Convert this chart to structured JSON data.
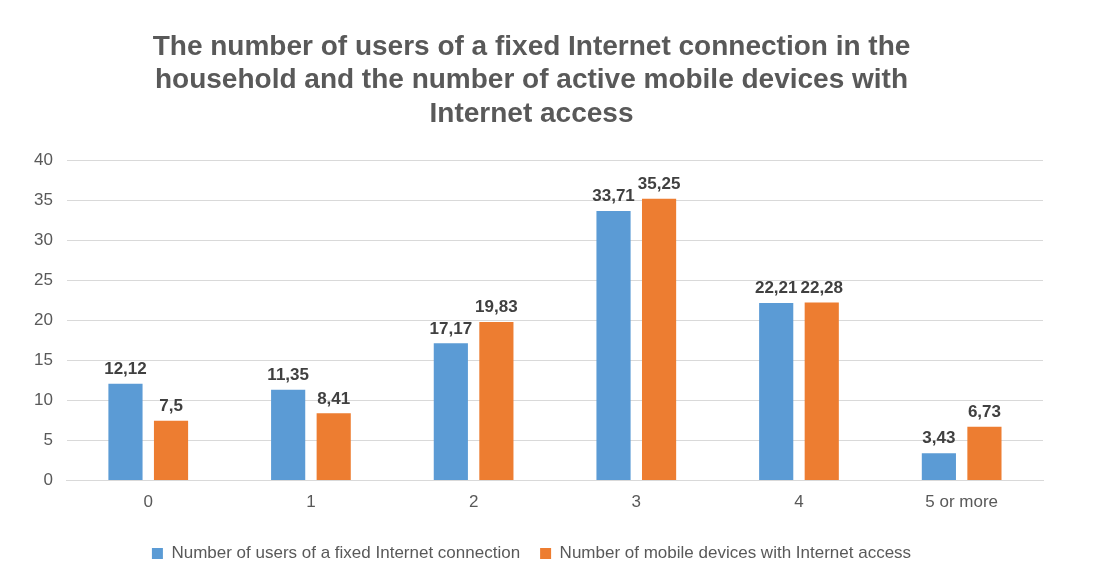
{
  "chart_data": {
    "type": "bar",
    "title": "The number of users of a fixed Internet connection in the household and the number of active mobile devices with Internet access",
    "categories": [
      "0",
      "1",
      "2",
      "3",
      "4",
      "5 or more"
    ],
    "series": [
      {
        "name": "Number of users of a fixed Internet connection",
        "color": "#5b9bd5",
        "values": [
          12.12,
          11.35,
          17.17,
          33.71,
          22.21,
          3.43
        ],
        "value_labels": [
          "12,12",
          "11,35",
          "17,17",
          "33,71",
          "22,21",
          "3,43"
        ]
      },
      {
        "name": "Number of mobile devices with Internet access",
        "color": "#ed7d31",
        "values": [
          7.5,
          8.41,
          19.83,
          35.25,
          22.28,
          6.73
        ],
        "value_labels": [
          "7,5",
          "8,41",
          "19,83",
          "35,25",
          "22,28",
          "6,73"
        ]
      }
    ],
    "ylim": [
      0,
      40
    ],
    "yticks": [
      0,
      5,
      10,
      15,
      20,
      25,
      30,
      35,
      40
    ],
    "grid": "y",
    "legend": "bottom"
  }
}
